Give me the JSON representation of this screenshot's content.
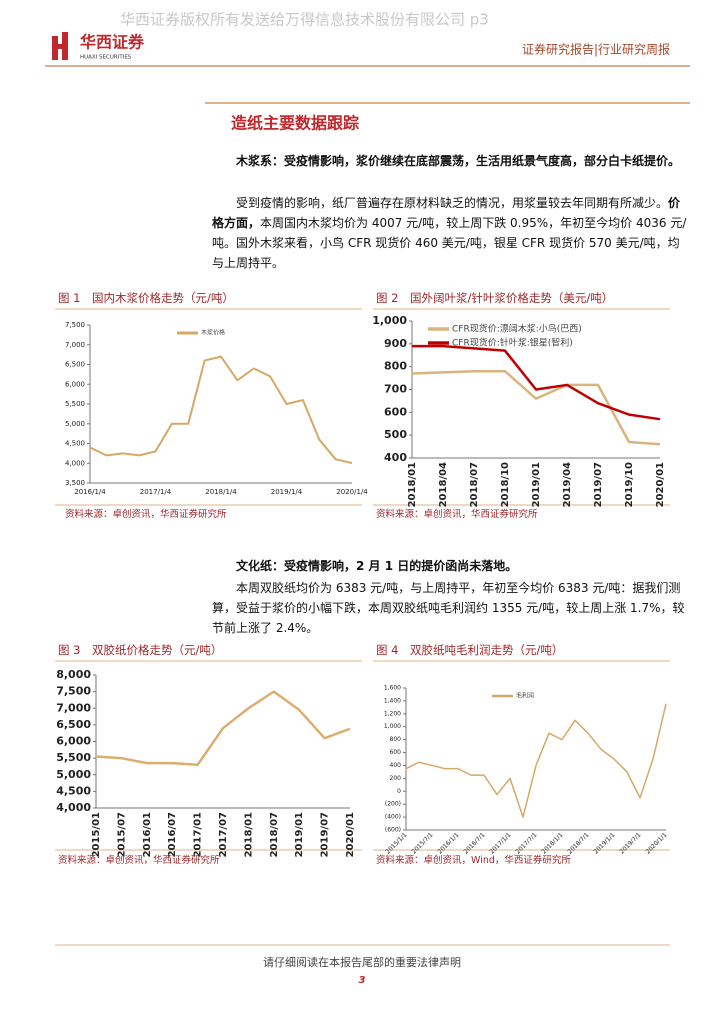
{
  "header": {
    "watermark": "华西证券版权所有发送给万得信息技术股份有限公司 p3",
    "logo_name": "华西证券",
    "logo_en": "HUAXI SECURITIES",
    "report_type": "证券研究报告|行业研究周报"
  },
  "section_title": "造纸主要数据跟踪",
  "paragraphs": [
    [
      "木浆系：受疫情影响，浆价继续在底部震荡，生活用纸景气度高，部分白卡纸提价。"
    ],
    [
      "受到疫情的影响，纸厂普遍存在原材料缺乏的情况，用浆量较去年同期有所减少。",
      "价格方面，",
      "本周国内木浆均价为 4007 元/吨，较上周下跌 0.95%，年初至今均价 4036 元/吨。国外木浆来看，小鸟 CFR 现货价 460 美元/吨，银星 CFR 现货价 570 美元/吨，均与上周持平。"
    ],
    [
      "文化纸：受疫情影响，2 月 1 日的提价函尚未落地。"
    ],
    [
      "本周双胶纸均价为 6383 元/吨，与上周持平，年初至今均价 6383 元/吨：据我们测算，受益于浆价的小幅下跌，本周双胶纸吨毛利润约 1355 元/吨，较上周上涨 1.7%，较节前上涨了 2.4%。"
    ]
  ],
  "footer": {
    "notice": "请仔细阅读在本报告尾部的重要法律声明",
    "page": "3"
  },
  "chart_data": [
    {
      "type": "line",
      "title": "图 1　国内木浆价格走势（元/吨）",
      "source": "资料来源：卓创资讯，华西证券研究所",
      "categories": [
        "2016/1/4",
        null,
        null,
        null,
        "2017/1/4",
        null,
        null,
        null,
        "2018/1/4",
        null,
        null,
        null,
        "2019/1/4",
        null,
        null,
        null,
        "2020/1/4"
      ],
      "series": [
        {
          "name": "木浆价格",
          "color": "#d6a866",
          "values": [
            4400,
            4200,
            4250,
            4200,
            4300,
            5000,
            5000,
            6600,
            6700,
            6100,
            6400,
            6200,
            5500,
            5600,
            4600,
            4100,
            4007
          ]
        }
      ],
      "ylim": [
        3500,
        7500
      ],
      "yticks": [
        {
          "value": 3500,
          "label": "3,500"
        },
        {
          "value": 4000,
          "label": "4,000"
        },
        {
          "value": 4500,
          "label": "4,500"
        },
        {
          "value": 5000,
          "label": "5,000"
        },
        {
          "value": 5500,
          "label": "5,500"
        },
        {
          "value": 6000,
          "label": "6,000"
        },
        {
          "value": 6500,
          "label": "6,500"
        },
        {
          "value": 7000,
          "label": "7,000"
        },
        {
          "value": 7500,
          "label": "7,500"
        }
      ],
      "legend": "upper center"
    },
    {
      "type": "line",
      "title": "图 2　国外阔叶浆/针叶浆价格走势（美元/吨）",
      "source": "资料来源：卓创资讯，华西证券研究所",
      "categories": [
        "2018/01",
        "2018/04",
        "2018/07",
        "2018/10",
        "2019/01",
        "2019/04",
        "2019/07",
        "2019/10",
        "2020/01"
      ],
      "series": [
        {
          "name": "CFR现货价:漂阔木浆:小鸟(巴西)",
          "color": "#d8b47e",
          "values": [
            770,
            775,
            780,
            780,
            660,
            720,
            720,
            470,
            460
          ]
        },
        {
          "name": "CFR现货价:针叶浆:银星(智利)",
          "color": "#c00000",
          "values": [
            890,
            890,
            880,
            870,
            700,
            720,
            640,
            590,
            570
          ]
        }
      ],
      "ylim": [
        400,
        1000
      ],
      "yticks": [
        400,
        500,
        600,
        700,
        800,
        900,
        {
          "value": 1000,
          "label": "1,000"
        }
      ],
      "legend": "upper left"
    },
    {
      "type": "line",
      "title": "图 3　双胶纸价格走势（元/吨）",
      "source": "资料来源：卓创资讯，华西证券研究所",
      "categories": [
        "2015/01",
        "2015/07",
        "2016/01",
        "2016/07",
        "2017/01",
        "2017/07",
        "2018/01",
        "2018/07",
        "2019/01",
        "2019/07",
        "2020/01"
      ],
      "series": [
        {
          "name": null,
          "color": "#dcae6e",
          "values": [
            5550,
            5500,
            5350,
            5350,
            5300,
            6400,
            7000,
            7500,
            6950,
            6100,
            6383
          ]
        }
      ],
      "ylim": [
        4000,
        8000
      ],
      "yticks": [
        {
          "value": 4000,
          "label": "4,000"
        },
        {
          "value": 4500,
          "label": "4,500"
        },
        {
          "value": 5000,
          "label": "5,000"
        },
        {
          "value": 5500,
          "label": "5,500"
        },
        {
          "value": 6000,
          "label": "6,000"
        },
        {
          "value": 6500,
          "label": "6,500"
        },
        {
          "value": 7000,
          "label": "7,000"
        },
        {
          "value": 7500,
          "label": "7,500"
        },
        {
          "value": 8000,
          "label": "8,000"
        }
      ],
      "legend": null
    },
    {
      "type": "line",
      "title": "图 4　双胶纸吨毛利润走势（元/吨）",
      "source": "资料来源：卓创资讯，Wind，华西证券研究所",
      "categories": [
        "2015/1/1",
        null,
        "2015/7/1",
        null,
        "2016/1/1",
        null,
        "2016/7/1",
        null,
        "2017/1/1",
        null,
        "2017/7/1",
        null,
        "2018/1/1",
        null,
        "2018/7/1",
        null,
        "2019/1/1",
        null,
        "2019/7/1",
        null,
        "2020/1/1"
      ],
      "series": [
        {
          "name": "毛利润",
          "color": "#d6a866",
          "values": [
            350,
            450,
            400,
            350,
            350,
            250,
            250,
            -50,
            200,
            -400,
            400,
            900,
            800,
            1100,
            900,
            650,
            500,
            300,
            -100,
            500,
            1355
          ]
        }
      ],
      "ylim": [
        -600,
        1600
      ],
      "yticks": [
        {
          "value": -600,
          "label": "(600)"
        },
        {
          "value": -400,
          "label": "(400)"
        },
        {
          "value": -200,
          "label": "(200)"
        },
        0,
        200,
        400,
        600,
        800,
        {
          "value": 1000,
          "label": "1,000"
        },
        {
          "value": 1200,
          "label": "1,200"
        },
        {
          "value": 1400,
          "label": "1,400"
        },
        {
          "value": 1600,
          "label": "1,600"
        }
      ],
      "legend": "upper center"
    }
  ]
}
